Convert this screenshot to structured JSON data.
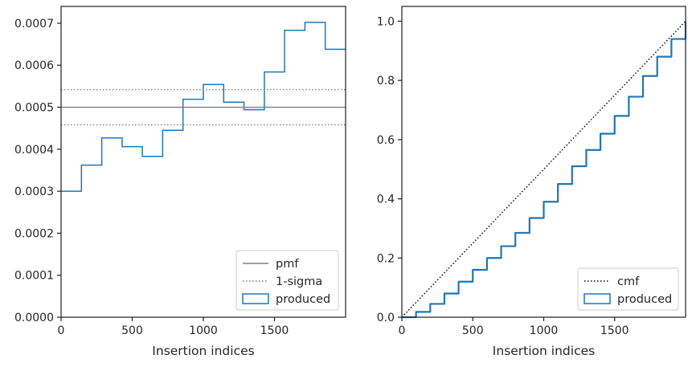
{
  "chart_data": [
    {
      "type": "histogram",
      "xlabel": "Insertion indices",
      "ylabel": "",
      "xlim": [
        0,
        2000
      ],
      "ylim": [
        0,
        0.00074
      ],
      "xticks": [
        "0",
        "500",
        "1000",
        "1500"
      ],
      "yticks": [
        "0.0000",
        "0.0001",
        "0.0002",
        "0.0003",
        "0.0004",
        "0.0005",
        "0.0006",
        "0.0007"
      ],
      "bin_edges": [
        0,
        143,
        286,
        429,
        571,
        714,
        857,
        1000,
        1143,
        1286,
        1429,
        1571,
        1714,
        1857,
        2000
      ],
      "series": [
        {
          "name": "produced",
          "kind": "step",
          "color": "#1f77b4",
          "values": [
            0.0003,
            0.000362,
            0.000427,
            0.000406,
            0.000383,
            0.000445,
            0.000519,
            0.000554,
            0.000512,
            0.000494,
            0.000584,
            0.000683,
            0.000702,
            0.000638
          ]
        },
        {
          "name": "pmf",
          "kind": "hline",
          "color": "#808080",
          "y": 0.0005
        },
        {
          "name": "1-sigma",
          "kind": "hline-dotted",
          "color": "#808080",
          "y": [
            0.000458,
            0.000542
          ]
        }
      ],
      "legend": {
        "position": "lower-right",
        "entries": [
          "pmf",
          "1-sigma",
          "produced"
        ]
      }
    },
    {
      "type": "line",
      "xlabel": "Insertion indices",
      "ylabel": "",
      "xlim": [
        0,
        2000
      ],
      "ylim": [
        0,
        1.05
      ],
      "xticks": [
        "0",
        "500",
        "1000",
        "1500"
      ],
      "yticks": [
        "0.0",
        "0.2",
        "0.4",
        "0.6",
        "0.8",
        "1.0"
      ],
      "series": [
        {
          "name": "cmf",
          "kind": "dotted",
          "color": "#000000",
          "x": [
            0,
            2000
          ],
          "y": [
            0,
            1.0
          ]
        },
        {
          "name": "produced",
          "kind": "step",
          "color": "#1f77b4",
          "x": [
            0,
            100,
            200,
            300,
            400,
            500,
            600,
            700,
            800,
            900,
            1000,
            1100,
            1200,
            1300,
            1400,
            1500,
            1600,
            1700,
            1800,
            1900,
            2000
          ],
          "y": [
            0,
            0.018,
            0.045,
            0.08,
            0.12,
            0.16,
            0.2,
            0.24,
            0.285,
            0.335,
            0.39,
            0.45,
            0.51,
            0.565,
            0.62,
            0.68,
            0.745,
            0.815,
            0.88,
            0.94,
            1.0
          ]
        }
      ],
      "legend": {
        "position": "lower-right",
        "entries": [
          "cmf",
          "produced"
        ]
      }
    }
  ]
}
